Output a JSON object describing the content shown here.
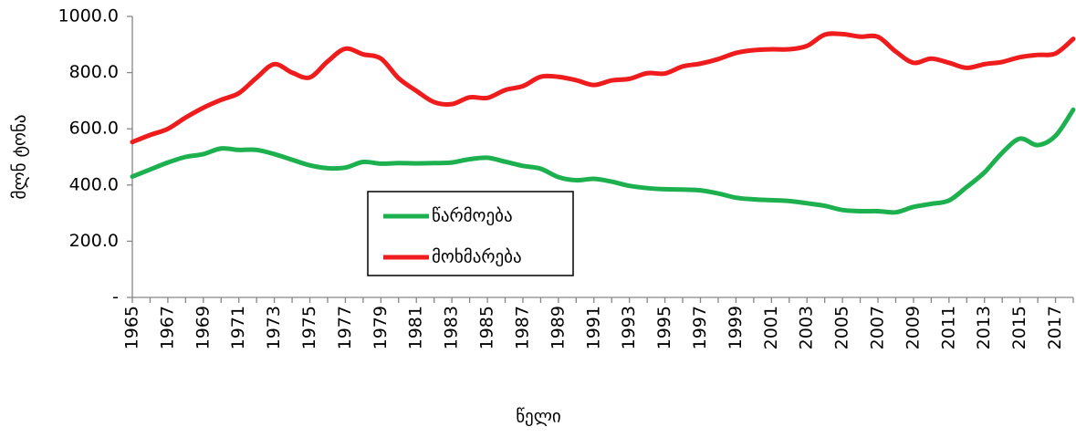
{
  "chart_data": {
    "type": "line",
    "xlabel": "წელი",
    "ylabel": "მლნ ტონა",
    "categories": [
      "1965",
      null,
      "1967",
      null,
      "1969",
      null,
      "1971",
      null,
      "1973",
      null,
      "1975",
      null,
      "1977",
      null,
      "1979",
      null,
      "1981",
      null,
      "1983",
      null,
      "1985",
      null,
      "1987",
      null,
      "1989",
      null,
      "1991",
      null,
      "1993",
      null,
      "1995",
      null,
      "1997",
      null,
      "1999",
      null,
      "2001",
      null,
      "2003",
      null,
      "2005",
      null,
      "2007",
      null,
      "2009",
      null,
      "2011",
      null,
      "2013",
      null,
      "2015",
      null,
      "2017",
      null
    ],
    "series": [
      {
        "name": "წარმოება",
        "color": "#1db04f",
        "values": [
          430,
          455,
          480,
          500,
          510,
          530,
          525,
          525,
          510,
          490,
          470,
          460,
          462,
          482,
          476,
          478,
          477,
          478,
          480,
          492,
          497,
          483,
          468,
          458,
          428,
          417,
          422,
          412,
          397,
          389,
          385,
          384,
          381,
          370,
          355,
          349,
          346,
          343,
          335,
          326,
          311,
          307,
          307,
          303,
          322,
          333,
          345,
          393,
          445,
          515,
          565,
          542,
          575,
          668
        ]
      },
      {
        "name": "მოხმარება",
        "color": "#ee1c1c",
        "values": [
          553,
          578,
          600,
          640,
          675,
          703,
          727,
          782,
          830,
          800,
          783,
          840,
          885,
          865,
          850,
          780,
          735,
          695,
          688,
          712,
          710,
          738,
          752,
          785,
          785,
          773,
          756,
          772,
          778,
          798,
          797,
          822,
          832,
          848,
          870,
          880,
          883,
          883,
          895,
          935,
          937,
          928,
          927,
          875,
          835,
          850,
          835,
          817,
          830,
          838,
          855,
          863,
          868,
          920
        ]
      }
    ],
    "ylim": [
      0,
      1000
    ],
    "yticks": [
      {
        "value": 0,
        "label": "-"
      },
      {
        "value": 200,
        "label": "200.0"
      },
      {
        "value": 400,
        "label": "400.0"
      },
      {
        "value": 600,
        "label": "600.0"
      },
      {
        "value": 800,
        "label": "800.0"
      },
      {
        "value": 1000,
        "label": "1000.0"
      }
    ]
  }
}
